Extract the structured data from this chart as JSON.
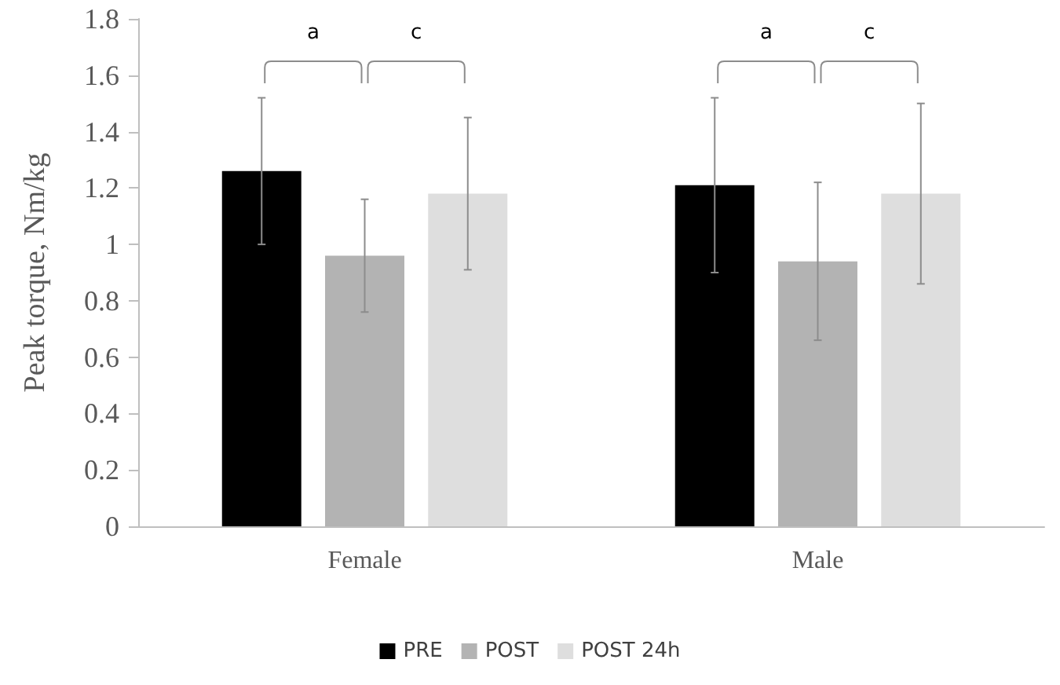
{
  "chart_data": {
    "type": "bar",
    "ylabel": "Peak torque, Nm/kg",
    "categories": [
      "Female",
      "Male"
    ],
    "series": [
      {
        "name": "PRE",
        "color": "#000000",
        "values": [
          1.26,
          1.21
        ],
        "errors": [
          0.26,
          0.31
        ]
      },
      {
        "name": "POST",
        "color": "#b3b3b3",
        "values": [
          0.96,
          0.94
        ],
        "errors": [
          0.2,
          0.28
        ]
      },
      {
        "name": "POST 24h",
        "color": "#dedede",
        "values": [
          1.18,
          1.18
        ],
        "errors": [
          0.27,
          0.32
        ]
      }
    ],
    "ylim": [
      0,
      1.8
    ],
    "yticks": [
      0,
      0.2,
      0.4,
      0.6,
      0.8,
      1,
      1.2,
      1.4,
      1.6,
      1.8
    ],
    "grid": false,
    "legend": "bottom",
    "annotations": [
      "a",
      "c",
      "a",
      "c"
    ]
  }
}
